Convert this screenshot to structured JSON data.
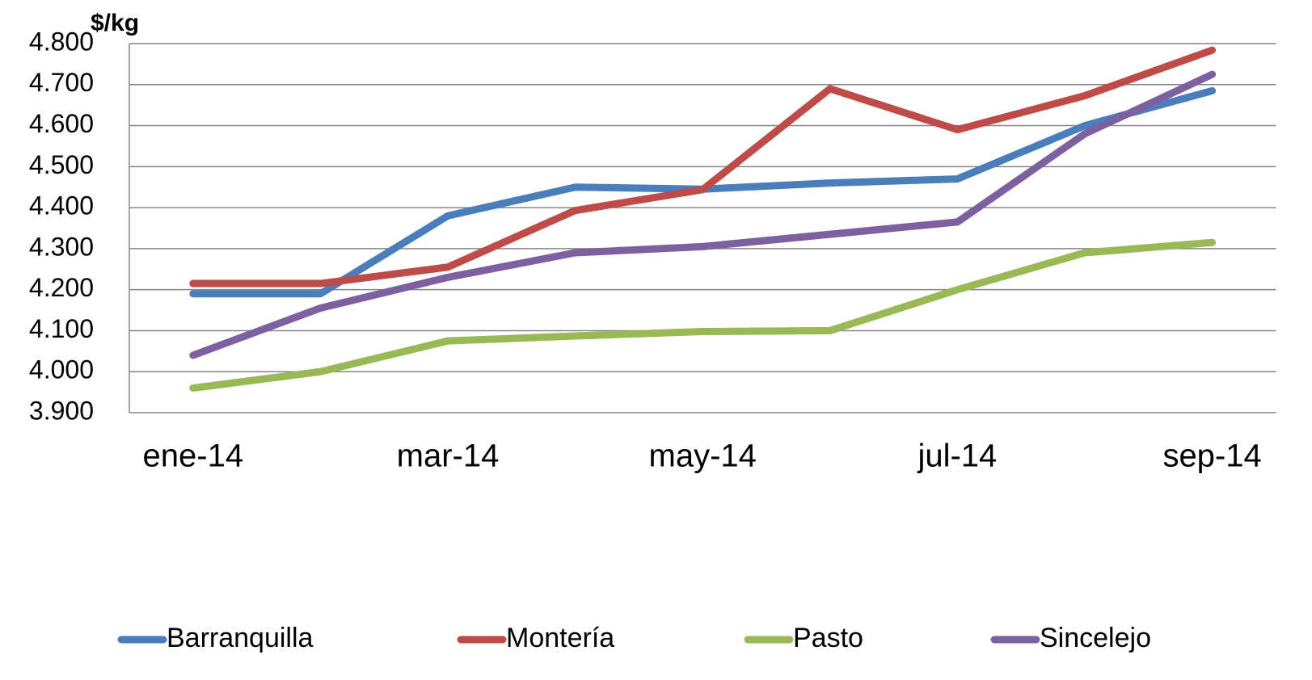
{
  "chart_data": {
    "type": "line",
    "y_label": "$/kg",
    "categories": [
      "ene-14",
      null,
      "mar-14",
      null,
      "may-14",
      null,
      "jul-14",
      null,
      "sep-14"
    ],
    "series": [
      {
        "name": "Barranquilla",
        "color": "#4a7ebb",
        "values": [
          4190,
          4190,
          4380,
          4450,
          4445,
          4460,
          4470,
          4600,
          4685
        ]
      },
      {
        "name": "Montería",
        "color": "#be4b48",
        "values": [
          4215,
          4215,
          4255,
          4393,
          4444,
          4690,
          4590,
          4673,
          4784
        ]
      },
      {
        "name": "Pasto",
        "color": "#98b954",
        "values": [
          3960,
          4000,
          4075,
          4087,
          4098,
          4100,
          4200,
          4290,
          4315
        ]
      },
      {
        "name": "Sincelejo",
        "color": "#7d60a0",
        "values": [
          4040,
          4155,
          4230,
          4290,
          4305,
          4335,
          4365,
          4580,
          4725
        ]
      }
    ],
    "ylim": [
      3900,
      4800
    ],
    "yticks": [
      {
        "value": 3900,
        "label": "3.900"
      },
      {
        "value": 4000,
        "label": "4.000"
      },
      {
        "value": 4100,
        "label": "4.100"
      },
      {
        "value": 4200,
        "label": "4.200"
      },
      {
        "value": 4300,
        "label": "4.300"
      },
      {
        "value": 4400,
        "label": "4.400"
      },
      {
        "value": 4500,
        "label": "4.500"
      },
      {
        "value": 4600,
        "label": "4.600"
      },
      {
        "value": 4700,
        "label": "4.700"
      },
      {
        "value": 4800,
        "label": "4.800"
      }
    ],
    "grid": true,
    "legend": "bottom"
  }
}
